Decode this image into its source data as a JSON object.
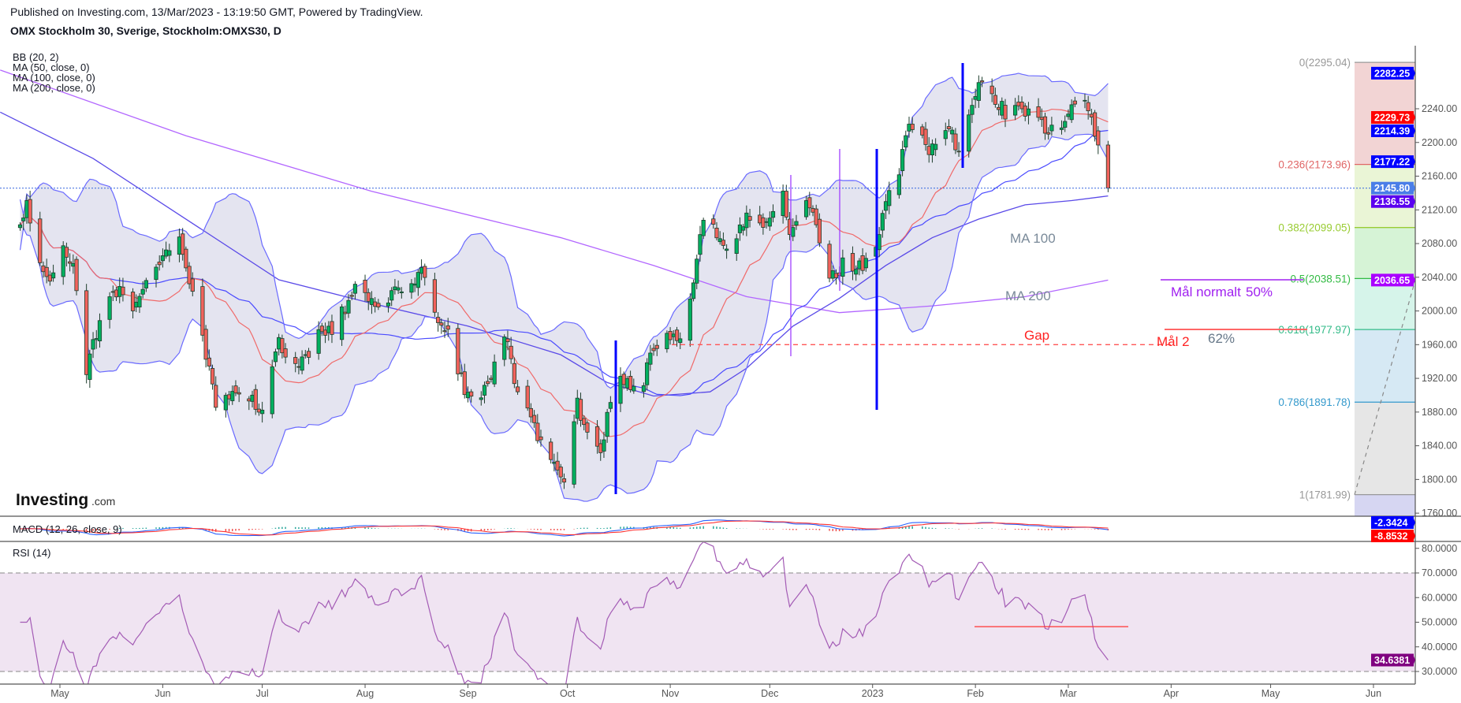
{
  "header": {
    "published": "Published on Investing.com, 13/Mar/2023 - 13:19:50 GMT, Powered by TradingView.",
    "title": "OMX Stockholm 30, Sverige, Stockholm:OMXS30, D"
  },
  "legend": {
    "bb": "BB (20, 2)",
    "ma50": "MA (50, close, 0)",
    "ma100": "MA (100, close, 0)",
    "ma200": "MA (200, close, 0)",
    "macd": "MACD (12, 26, close, 9)",
    "rsi": "RSI (14)"
  },
  "logo": {
    "text": "Investing",
    "suffix": ".com"
  },
  "annotations": {
    "ma100": "MA 100",
    "ma200": "MA 200",
    "gap": "Gap",
    "mal2": "Mål 2",
    "pct62": "62%",
    "mal_normalt": "Mål normalt",
    "pct50": "50%"
  },
  "colors": {
    "up": "#00b060",
    "down": "#f2625c",
    "wick": "#1e3d2c",
    "bb_line": "#6a6aff",
    "bb_fill": "#e4e4f0",
    "ma20": "#f06a6a",
    "ma50": "#4a4aff",
    "ma100": "#5a4ae8",
    "ma200": "#b266ff",
    "rsi": "#a35bb5",
    "rsi_band": "#f0e4f2"
  },
  "price_axis": {
    "ticks": [
      "2240.00",
      "2200.00",
      "2160.00",
      "2120.00",
      "2080.00",
      "2040.00",
      "2000.00",
      "1960.00",
      "1920.00",
      "1880.00",
      "1840.00",
      "1800.00",
      "1760.00"
    ],
    "badges": [
      {
        "label": "2282.25",
        "color": "#0000ff"
      },
      {
        "label": "2229.73",
        "color": "#ff0000"
      },
      {
        "label": "2214.39",
        "color": "#0000ff"
      },
      {
        "label": "2177.22",
        "color": "#0000ff"
      },
      {
        "label": "2145.80",
        "color": "#4a7ee8"
      },
      {
        "label": "2136.55",
        "color": "#5a00f0"
      },
      {
        "label": "2036.65",
        "color": "#aa00ff"
      }
    ]
  },
  "macd_axis": {
    "badges": [
      {
        "label": "-2.3424",
        "color": "#0000ff"
      },
      {
        "label": "-8.8532",
        "color": "#ff0000"
      }
    ]
  },
  "rsi_axis": {
    "ticks": [
      "80.0000",
      "70.0000",
      "60.0000",
      "50.0000",
      "40.0000",
      "30.0000"
    ],
    "badge": {
      "label": "34.6381",
      "color": "#800080"
    }
  },
  "chart_data": {
    "type": "candlestick",
    "title": "OMX Stockholm 30, Sverige, Stockholm:OMXS30, D",
    "ylim": [
      1760,
      2300
    ],
    "x_ticks": [
      {
        "label": "May",
        "date": "2022-05-01"
      },
      {
        "label": "Jun",
        "date": "2022-06-01"
      },
      {
        "label": "Jul",
        "date": "2022-07-01"
      },
      {
        "label": "Aug",
        "date": "2022-08-01"
      },
      {
        "label": "Sep",
        "date": "2022-09-01"
      },
      {
        "label": "Oct",
        "date": "2022-10-01"
      },
      {
        "label": "Nov",
        "date": "2022-11-01"
      },
      {
        "label": "Dec",
        "date": "2022-12-01"
      },
      {
        "label": "2023",
        "date": "2023-01-01"
      },
      {
        "label": "Feb",
        "date": "2023-02-01"
      },
      {
        "label": "Mar",
        "date": "2023-03-01"
      },
      {
        "label": "Apr",
        "date": "2023-04-01"
      },
      {
        "label": "May",
        "date": "2023-05-01"
      },
      {
        "label": "Jun",
        "date": "2023-06-01"
      }
    ],
    "close": [
      [
        "2022-04-19",
        2098
      ],
      [
        "2022-04-21",
        2131
      ],
      [
        "2022-04-25",
        2059
      ],
      [
        "2022-04-27",
        2037
      ],
      [
        "2022-05-02",
        2070
      ],
      [
        "2022-05-05",
        2048
      ],
      [
        "2022-05-09",
        1932
      ],
      [
        "2022-05-12",
        1970
      ],
      [
        "2022-05-17",
        2026
      ],
      [
        "2022-05-23",
        2009
      ],
      [
        "2022-05-31",
        2059
      ],
      [
        "2022-06-06",
        2081
      ],
      [
        "2022-06-10",
        2015
      ],
      [
        "2022-06-14",
        1949
      ],
      [
        "2022-06-17",
        1893
      ],
      [
        "2022-06-23",
        1910
      ],
      [
        "2022-07-01",
        1882
      ],
      [
        "2022-07-06",
        1960
      ],
      [
        "2022-07-12",
        1937
      ],
      [
        "2022-07-18",
        1970
      ],
      [
        "2022-07-22",
        1976
      ],
      [
        "2022-07-29",
        2026
      ],
      [
        "2022-08-05",
        2004
      ],
      [
        "2022-08-10",
        2020
      ],
      [
        "2022-08-18",
        2048
      ],
      [
        "2022-08-22",
        1998
      ],
      [
        "2022-08-26",
        1976
      ],
      [
        "2022-08-31",
        1904
      ],
      [
        "2022-09-05",
        1893
      ],
      [
        "2022-09-09",
        1937
      ],
      [
        "2022-09-12",
        1976
      ],
      [
        "2022-09-15",
        1915
      ],
      [
        "2022-09-20",
        1871
      ],
      [
        "2022-09-26",
        1816
      ],
      [
        "2022-09-30",
        1799
      ],
      [
        "2022-10-04",
        1893
      ],
      [
        "2022-10-07",
        1849
      ],
      [
        "2022-10-11",
        1827
      ],
      [
        "2022-10-13",
        1882
      ],
      [
        "2022-10-17",
        1926
      ],
      [
        "2022-10-20",
        1904
      ],
      [
        "2022-10-24",
        1915
      ],
      [
        "2022-10-27",
        1960
      ],
      [
        "2022-11-02",
        1970
      ],
      [
        "2022-11-04",
        1965
      ],
      [
        "2022-11-08",
        2031
      ],
      [
        "2022-11-11",
        2109
      ],
      [
        "2022-11-15",
        2092
      ],
      [
        "2022-11-18",
        2076
      ],
      [
        "2022-11-24",
        2109
      ],
      [
        "2022-11-28",
        2103
      ],
      [
        "2022-12-05",
        2137
      ],
      [
        "2022-12-07",
        2098
      ],
      [
        "2022-12-12",
        2131
      ],
      [
        "2022-12-15",
        2103
      ],
      [
        "2022-12-19",
        2037
      ],
      [
        "2022-12-23",
        2054
      ],
      [
        "2022-12-29",
        2054
      ],
      [
        "2023-01-02",
        2081
      ],
      [
        "2023-01-05",
        2126
      ],
      [
        "2023-01-09",
        2170
      ],
      [
        "2023-01-12",
        2220
      ],
      [
        "2023-01-18",
        2192
      ],
      [
        "2023-01-23",
        2220
      ],
      [
        "2023-01-27",
        2192
      ],
      [
        "2023-01-31",
        2253
      ],
      [
        "2023-02-03",
        2280
      ],
      [
        "2023-02-06",
        2258
      ],
      [
        "2023-02-10",
        2236
      ],
      [
        "2023-02-14",
        2247
      ],
      [
        "2023-02-20",
        2225
      ],
      [
        "2023-02-23",
        2214
      ],
      [
        "2023-02-27",
        2209
      ],
      [
        "2023-03-03",
        2253
      ],
      [
        "2023-03-07",
        2242
      ],
      [
        "2023-03-09",
        2203
      ],
      [
        "2023-03-13",
        2145.8
      ]
    ],
    "ma100": [
      [
        "2022-04-13",
        2236
      ],
      [
        "2022-05-11",
        2181
      ],
      [
        "2022-06-08",
        2109
      ],
      [
        "2022-07-06",
        2037
      ],
      [
        "2022-08-03",
        2009
      ],
      [
        "2022-09-01",
        1982
      ],
      [
        "2022-09-29",
        1948
      ],
      [
        "2022-10-13",
        1915
      ],
      [
        "2022-10-27",
        1899
      ],
      [
        "2022-11-13",
        1904
      ],
      [
        "2022-11-24",
        1932
      ],
      [
        "2022-12-08",
        1982
      ],
      [
        "2022-12-22",
        2015
      ],
      [
        "2023-01-05",
        2054
      ],
      [
        "2023-01-19",
        2087
      ],
      [
        "2023-02-02",
        2109
      ],
      [
        "2023-02-16",
        2126
      ],
      [
        "2023-03-02",
        2131
      ],
      [
        "2023-03-13",
        2136.55
      ]
    ],
    "ma200": [
      [
        "2022-04-13",
        2286
      ],
      [
        "2022-06-08",
        2208
      ],
      [
        "2022-08-03",
        2142
      ],
      [
        "2022-09-29",
        2087
      ],
      [
        "2022-10-27",
        2054
      ],
      [
        "2022-11-24",
        2017
      ],
      [
        "2022-12-22",
        1998
      ],
      [
        "2023-01-19",
        2006
      ],
      [
        "2023-02-16",
        2017
      ],
      [
        "2023-03-13",
        2036.65
      ]
    ],
    "fibonacci": [
      {
        "label": "0(2295.04)",
        "price": 2295.04,
        "color": "#999999",
        "zone": "#f2d4d4"
      },
      {
        "label": "0.236(2173.96)",
        "price": 2173.96,
        "color": "#e06666",
        "zone": "#eaf5d6"
      },
      {
        "label": "0.382(2099.05)",
        "price": 2099.05,
        "color": "#99cc33",
        "zone": "#d6f3d6"
      },
      {
        "label": "0.5(2038.51)",
        "price": 2038.51,
        "color": "#33bb44",
        "zone": "#d6f4ea"
      },
      {
        "label": "0.618(1977.97)",
        "price": 1977.97,
        "color": "#33bb88",
        "zone": "#d6e9f4"
      },
      {
        "label": "0.786(1891.78)",
        "price": 1891.78,
        "color": "#3399cc",
        "zone": "#e6e6e6"
      },
      {
        "label": "1(1781.99)",
        "price": 1781.99,
        "color": "#999999",
        "zone": "#d6d6f2"
      }
    ],
    "last_price": 2145.8,
    "gap_level": 1960,
    "rsi_levels": [
      30,
      70
    ],
    "rsi_last": 34.6381,
    "rsi_marker_level": 48.2
  }
}
